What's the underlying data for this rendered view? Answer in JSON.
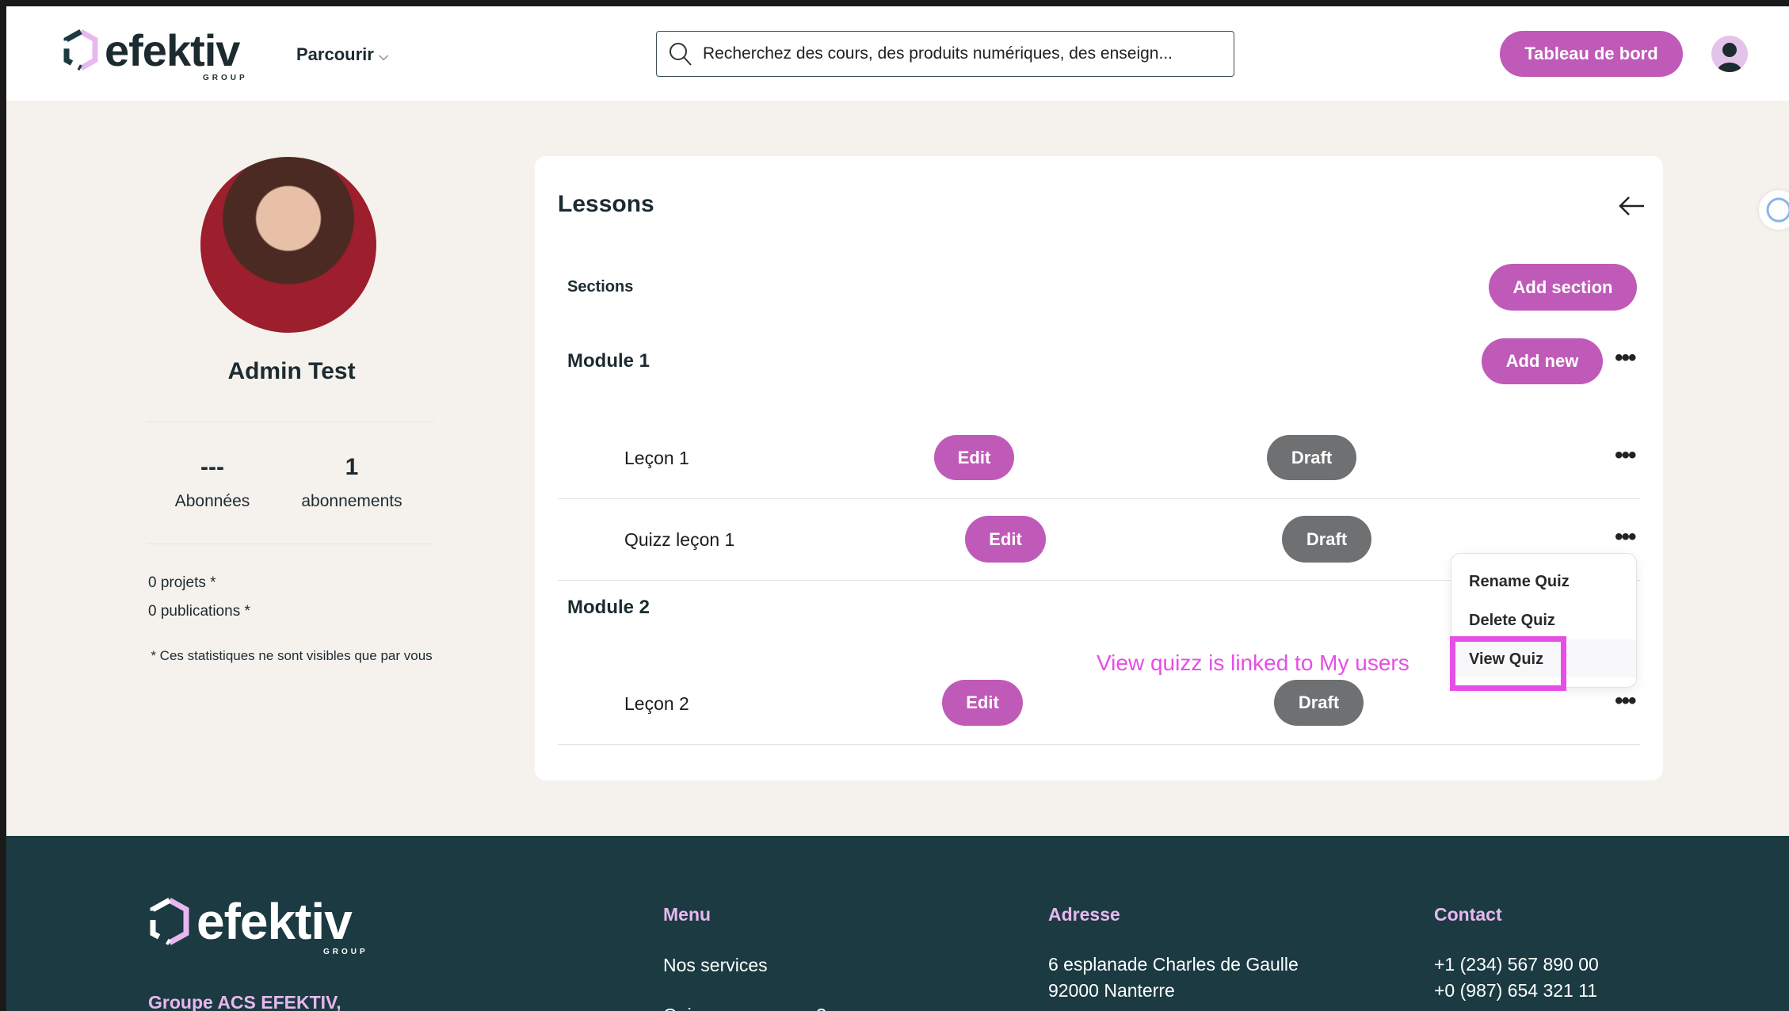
{
  "header": {
    "logo": "efektiv",
    "logo_sub": "GROUP",
    "browse": "Parcourir",
    "search_placeholder": "Recherchez des cours, des produits numériques, des enseign...",
    "dashboard": "Tableau de bord"
  },
  "profile": {
    "name": "Admin Test",
    "followers_value": "---",
    "followers_label": "Abonnées",
    "subs_value": "1",
    "subs_label": "abonnements",
    "projects": "0 projets *",
    "publications": "0 publications *",
    "note": "* Ces statistiques ne sont visibles que par vous"
  },
  "lessons": {
    "title": "Lessons",
    "sections_label": "Sections",
    "add_section": "Add section",
    "add_new": "Add new",
    "modules": [
      {
        "title": "Module 1"
      },
      {
        "title": "Module 2"
      }
    ],
    "rows": [
      {
        "title": "Leçon 1",
        "edit": "Edit",
        "status": "Draft"
      },
      {
        "title": "Quizz leçon 1",
        "edit": "Edit",
        "status": "Draft"
      },
      {
        "title": "Leçon 2",
        "edit": "Edit",
        "status": "Draft"
      }
    ],
    "menu": [
      "Rename Quiz",
      "Delete Quiz",
      "View Quiz"
    ],
    "annotation": "View quizz is linked to My users"
  },
  "footer": {
    "logo": "efektiv",
    "logo_sub": "GROUP",
    "company": "Groupe ACS EFEKTIV,",
    "menu_title": "Menu",
    "menu_items": [
      "Nos services",
      "Qui sommes-nous ?"
    ],
    "address_title": "Adresse",
    "address_lines": [
      "6 esplanade Charles de Gaulle",
      "92000 Nanterre"
    ],
    "contact_title": "Contact",
    "phones": [
      "+1 (234) 567 890 00",
      "+0 (987) 654 321 11"
    ]
  },
  "colors": {
    "accent": "#c05ab8",
    "draft": "#6e7072",
    "footer_bg": "#1b3a42",
    "footer_heading": "#e7b8ef",
    "annotation": "#e64ee6"
  }
}
